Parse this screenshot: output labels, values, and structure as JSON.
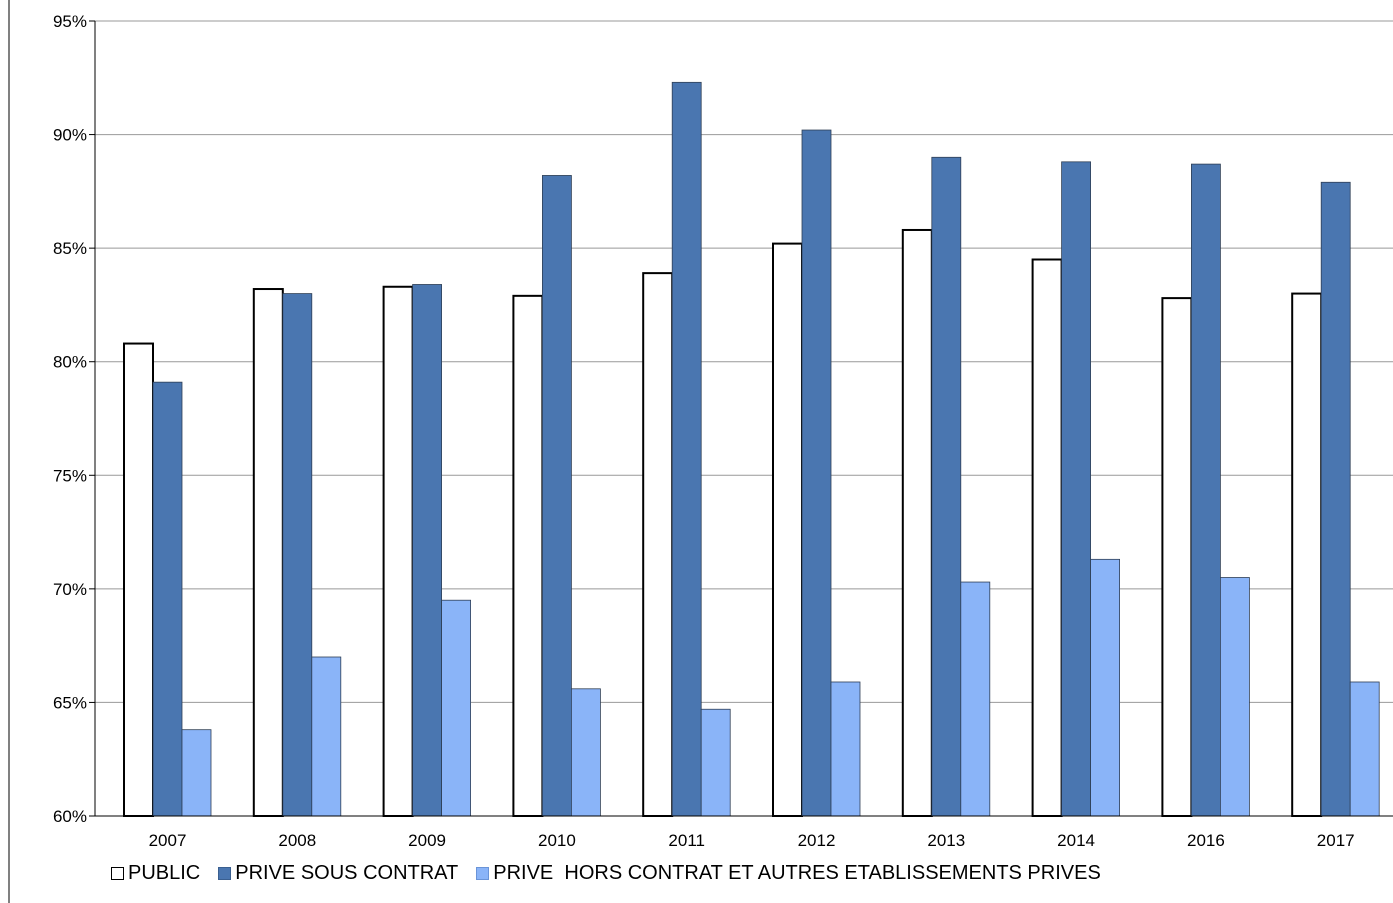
{
  "chart_data": {
    "type": "bar",
    "categories": [
      "2007",
      "2008",
      "2009",
      "2010",
      "2011",
      "2012",
      "2013",
      "2014",
      "2016",
      "2017"
    ],
    "series": [
      {
        "name": "PUBLIC",
        "color": "#ffffff",
        "values": [
          80.8,
          83.2,
          83.3,
          82.9,
          83.9,
          85.2,
          85.8,
          84.5,
          82.8,
          83.0
        ]
      },
      {
        "name": "PRIVE SOUS CONTRAT",
        "color": "#4a76b0",
        "values": [
          79.1,
          83.0,
          83.4,
          88.2,
          92.3,
          90.2,
          89.0,
          88.8,
          88.7,
          87.9
        ]
      },
      {
        "name": "PRIVE  HORS CONTRAT ET AUTRES ETABLISSEMENTS PRIVES",
        "color": "#8ab4f8",
        "values": [
          63.8,
          67.0,
          69.5,
          65.6,
          64.7,
          65.9,
          70.3,
          71.3,
          70.5,
          65.9
        ]
      }
    ],
    "ylim": [
      60,
      95
    ],
    "yticks": [
      "60%",
      "65%",
      "70%",
      "75%",
      "80%",
      "85%",
      "90%",
      "95%"
    ],
    "grid": true,
    "legend_position": "bottom",
    "title": "",
    "xlabel": "",
    "ylabel": ""
  }
}
